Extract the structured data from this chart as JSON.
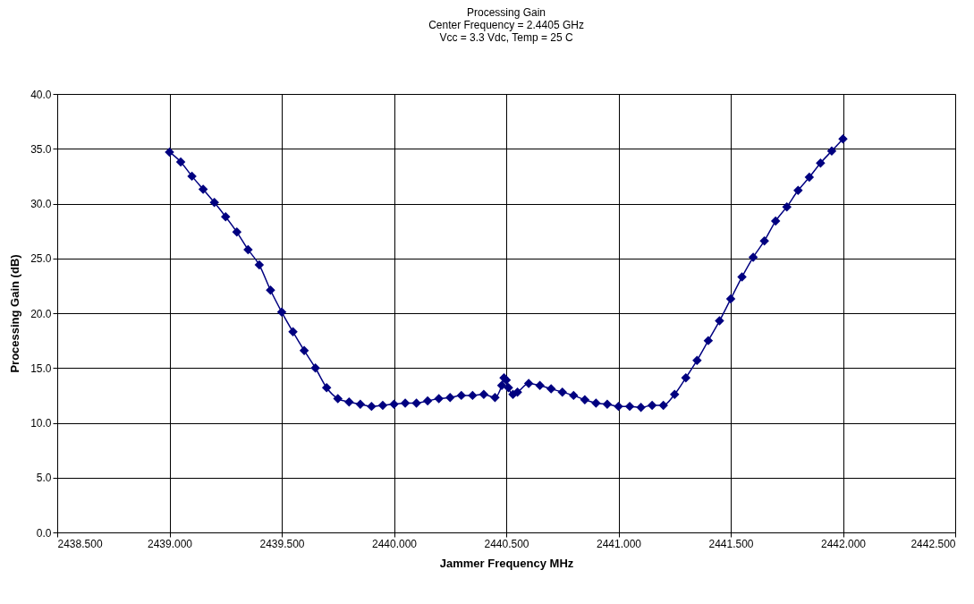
{
  "chart_data": {
    "type": "line",
    "title": [
      "Processing Gain",
      "Center Frequency = 2.4405 GHz",
      "Vcc = 3.3 Vdc, Temp = 25 C"
    ],
    "xlabel": "Jammer Frequency MHz",
    "ylabel": "Processing Gain (dB)",
    "x": [
      2439.0,
      2439.05,
      2439.1,
      2439.15,
      2439.2,
      2439.25,
      2439.3,
      2439.35,
      2439.4,
      2439.45,
      2439.5,
      2439.55,
      2439.6,
      2439.65,
      2439.7,
      2439.75,
      2439.8,
      2439.85,
      2439.9,
      2439.95,
      2440.0,
      2440.05,
      2440.1,
      2440.15,
      2440.2,
      2440.25,
      2440.3,
      2440.35,
      2440.4,
      2440.45,
      2440.48,
      2440.49,
      2440.5,
      2440.51,
      2440.53,
      2440.55,
      2440.6,
      2440.65,
      2440.7,
      2440.75,
      2440.8,
      2440.85,
      2440.9,
      2440.95,
      2441.0,
      2441.05,
      2441.1,
      2441.15,
      2441.2,
      2441.25,
      2441.3,
      2441.35,
      2441.4,
      2441.45,
      2441.5,
      2441.55,
      2441.6,
      2441.65,
      2441.7,
      2441.75,
      2441.8,
      2441.85,
      2441.9,
      2441.95,
      2442.0
    ],
    "series": [
      {
        "color": "#000080",
        "values": [
          34.7,
          33.8,
          32.5,
          31.3,
          30.1,
          28.8,
          27.4,
          25.8,
          24.4,
          22.1,
          20.1,
          18.3,
          16.6,
          15.0,
          13.2,
          12.2,
          11.9,
          11.7,
          11.5,
          11.6,
          11.7,
          11.8,
          11.8,
          12.0,
          12.2,
          12.3,
          12.5,
          12.5,
          12.6,
          12.3,
          13.4,
          14.1,
          13.9,
          13.2,
          12.6,
          12.8,
          13.6,
          13.4,
          13.1,
          12.8,
          12.5,
          12.1,
          11.8,
          11.7,
          11.5,
          11.5,
          11.4,
          11.6,
          11.6,
          12.6,
          14.1,
          15.7,
          17.5,
          19.3,
          21.3,
          23.3,
          25.1,
          26.6,
          28.4,
          29.7,
          31.2,
          32.4,
          33.7,
          34.8,
          35.9
        ]
      }
    ],
    "xlim": [
      2438.5,
      2442.5
    ],
    "xticks": [
      {
        "value": 2438.5,
        "label": "2438.500"
      },
      {
        "value": 2439,
        "label": "2439.000"
      },
      {
        "value": 2439.5,
        "label": "2439.500"
      },
      {
        "value": 2440,
        "label": "2440.000"
      },
      {
        "value": 2440.5,
        "label": "2440.500"
      },
      {
        "value": 2441,
        "label": "2441.000"
      },
      {
        "value": 2441.5,
        "label": "2441.500"
      },
      {
        "value": 2442,
        "label": "2442.000"
      },
      {
        "value": 2442.5,
        "label": "2442.500"
      }
    ],
    "ylim": [
      0,
      40
    ],
    "yticks": [
      {
        "value": 0,
        "label": "0.0"
      },
      {
        "value": 5,
        "label": "5.0"
      },
      {
        "value": 10,
        "label": "10.0"
      },
      {
        "value": 15,
        "label": "15.0"
      },
      {
        "value": 20,
        "label": "20.0"
      },
      {
        "value": 25,
        "label": "25.0"
      },
      {
        "value": 30,
        "label": "30.0"
      },
      {
        "value": 35,
        "label": "35.0"
      },
      {
        "value": 40,
        "label": "40.0"
      }
    ],
    "grid": true,
    "marker": "diamond",
    "line_style": "solid"
  }
}
